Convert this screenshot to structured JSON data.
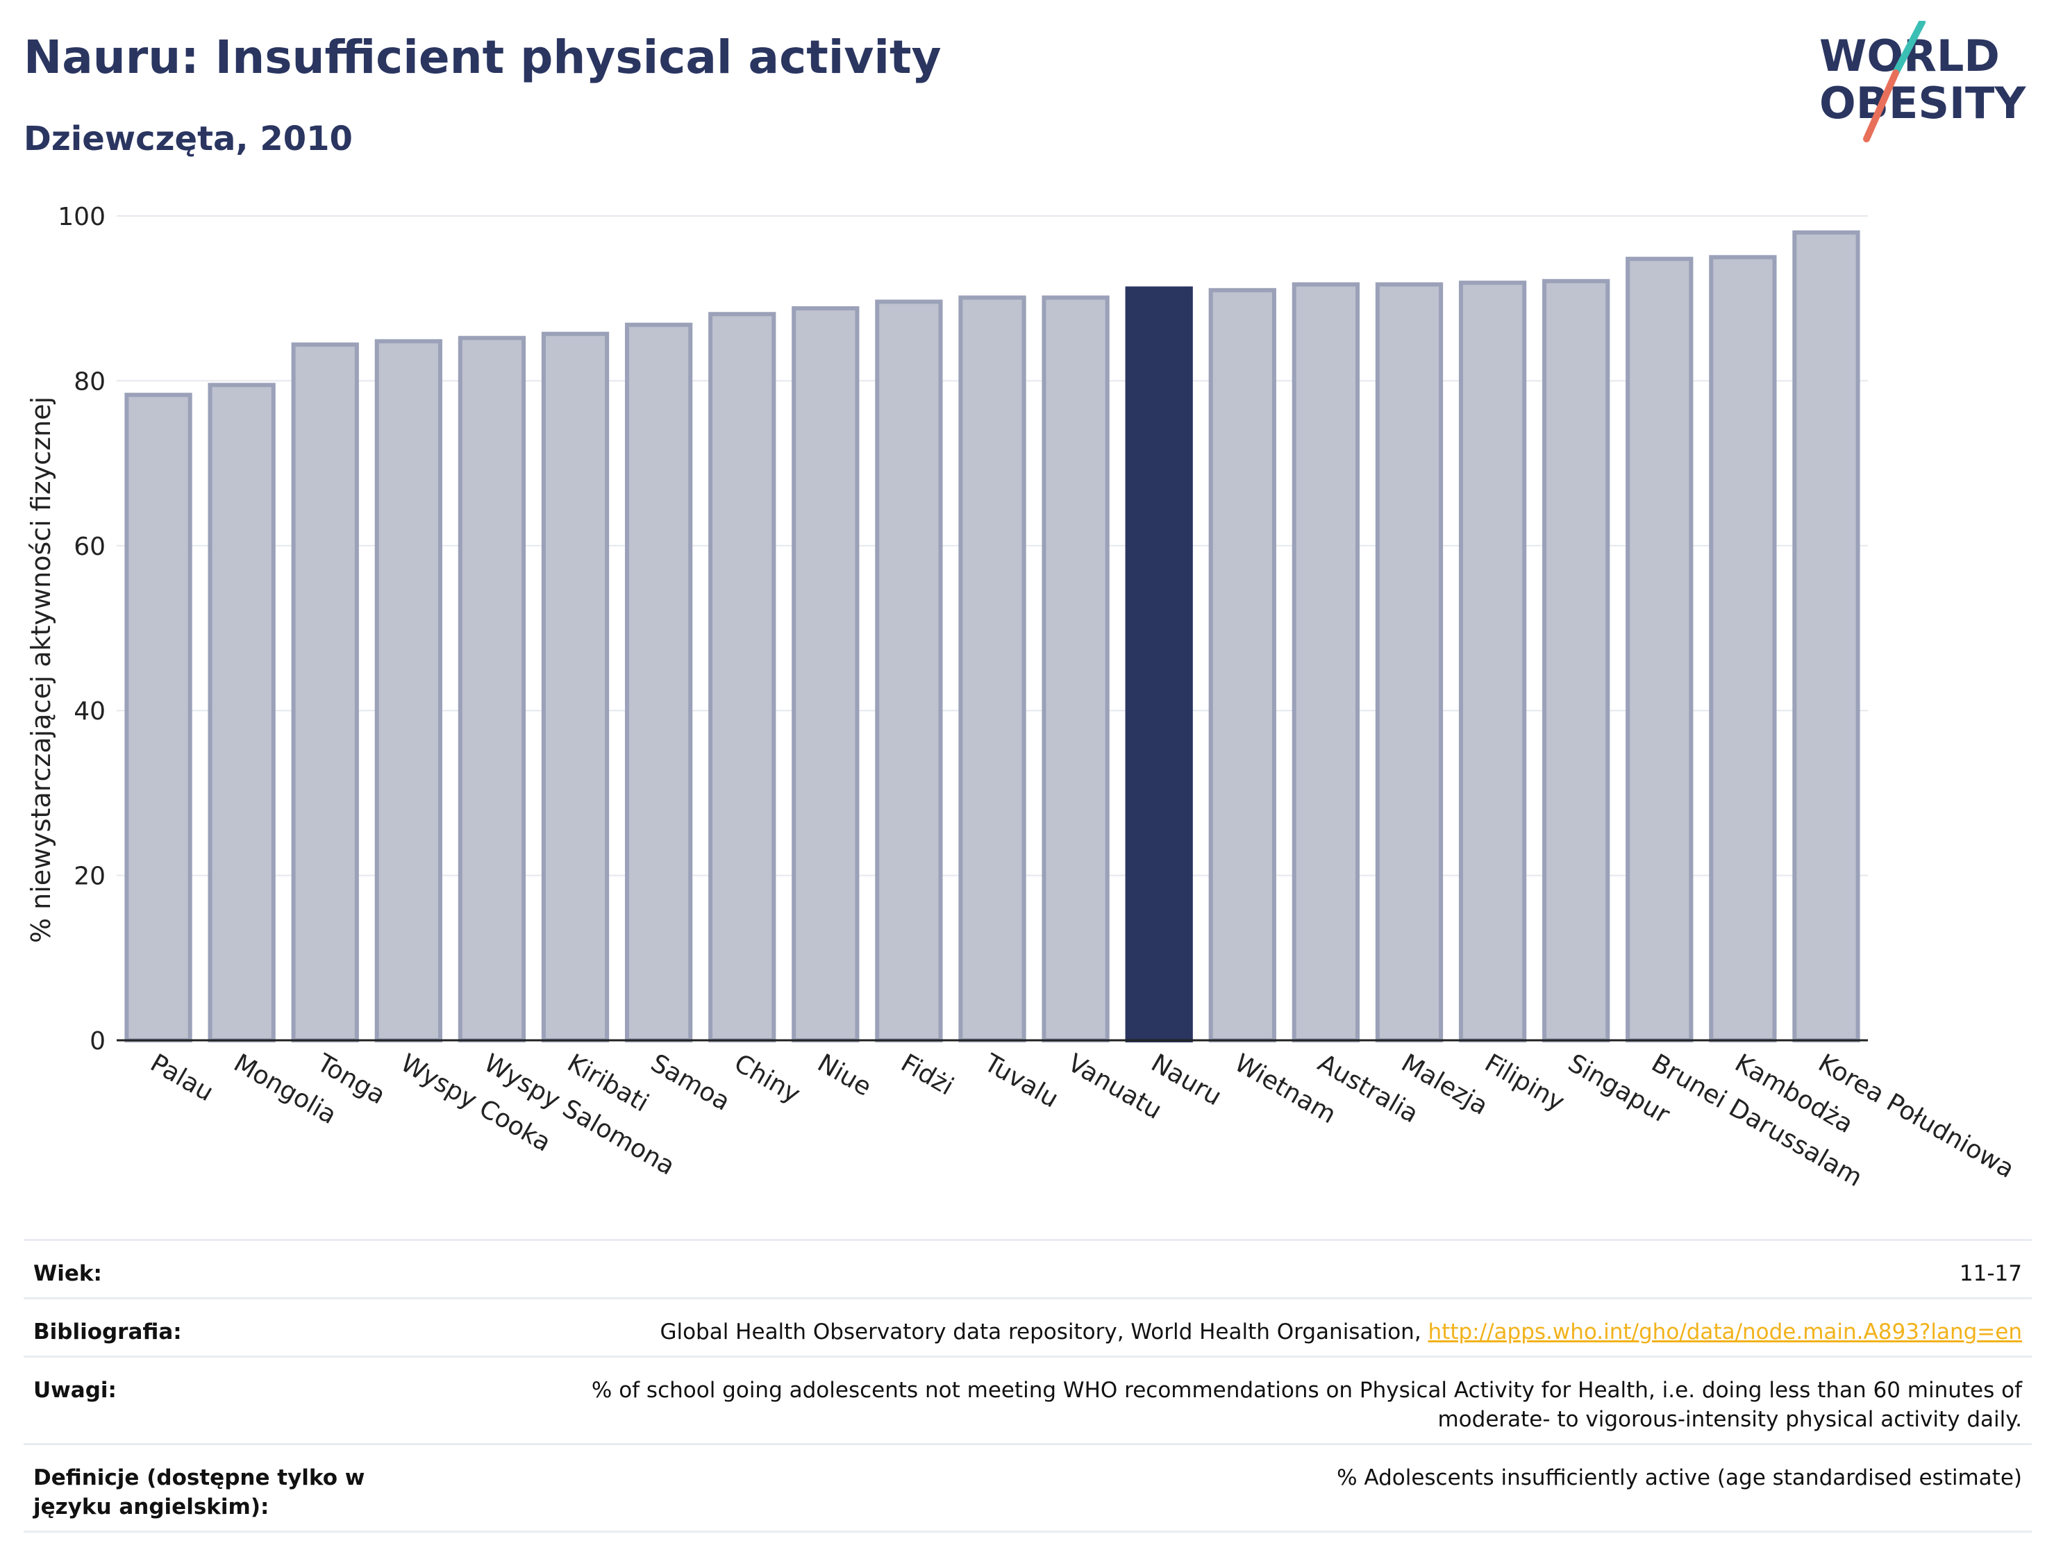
{
  "header": {
    "title": "Nauru: Insufficient physical activity",
    "subtitle": "Dziewczęta, 2010"
  },
  "logo": {
    "line1": "WORLD",
    "line2": "OBESITY",
    "accent_teal": "#3bbfb5",
    "accent_coral": "#e8705a",
    "text_color": "#2a3560"
  },
  "chart_data": {
    "type": "bar",
    "ylabel": "% niewystarczającej aktywności fizycznej",
    "xlabel": "",
    "ylim": [
      0,
      100
    ],
    "yticks": [
      0,
      20,
      40,
      60,
      80,
      100
    ],
    "grid": true,
    "highlight": "Nauru",
    "colors": {
      "bar": "#bfc2cf",
      "bar_border": "#9aa1b8",
      "highlight": "#2a3560"
    },
    "categories": [
      "Palau",
      "Mongolia",
      "Tonga",
      "Wyspy Cooka",
      "Wyspy Salomona",
      "Kiribati",
      "Samoa",
      "Chiny",
      "Niue",
      "Fidżi",
      "Tuvalu",
      "Vanuatu",
      "Nauru",
      "Wietnam",
      "Australia",
      "Malezja",
      "Filipiny",
      "Singapur",
      "Brunei Darussalam",
      "Kambodża",
      "Korea Południowa"
    ],
    "values": [
      78.3,
      79.5,
      84.4,
      84.8,
      85.2,
      85.7,
      86.8,
      88.1,
      88.8,
      89.6,
      90.1,
      90.1,
      91.2,
      91.0,
      91.7,
      91.7,
      91.9,
      92.1,
      94.8,
      95.0,
      98.0
    ]
  },
  "meta": {
    "rows": [
      {
        "label": "Wiek:",
        "value": "11-17"
      },
      {
        "label": "Bibliografia:",
        "value": "Global Health Observatory data repository, World Health Organisation, ",
        "link": "http://apps.who.int/gho/data/node.main.A893?lang=en"
      },
      {
        "label": "Uwagi:",
        "value": "% of school going adolescents not meeting WHO recommendations on Physical Activity for Health, i.e. doing less than 60 minutes of moderate- to vigorous-intensity physical activity daily."
      },
      {
        "label": "Definicje (dostępne tylko w języku angielskim):",
        "value": "% Adolescents insufficiently active (age standardised estimate)"
      }
    ]
  }
}
